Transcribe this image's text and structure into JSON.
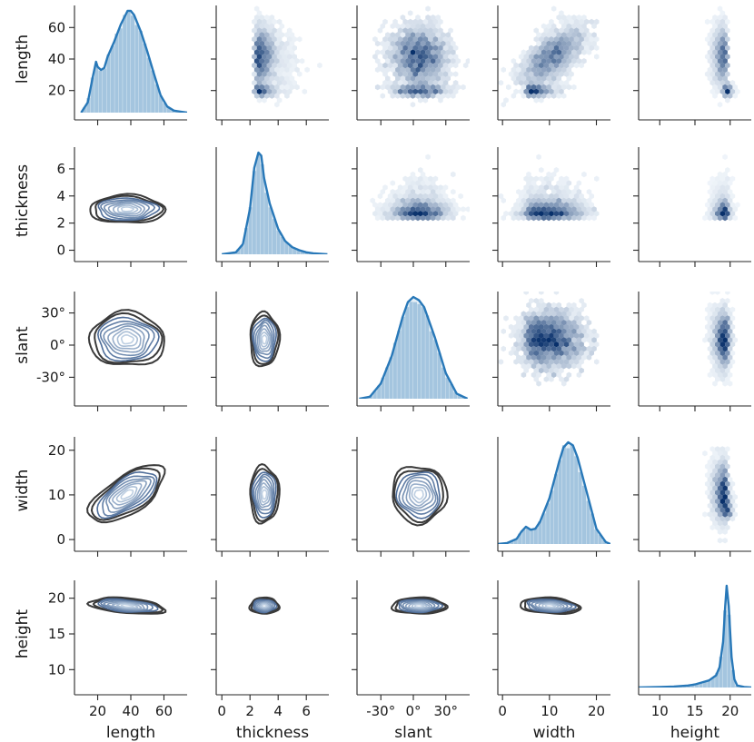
{
  "chart_data": {
    "type": "pairplot",
    "variables": [
      "length",
      "thickness",
      "slant",
      "width",
      "height"
    ],
    "diagonal": "kde-with-histogram",
    "upper": "hexbin-density",
    "lower": "kde-contours",
    "axes": {
      "length": {
        "range": [
          6,
          74
        ],
        "ticks": [
          20,
          40,
          60
        ],
        "tick_labels": [
          "20",
          "40",
          "60"
        ],
        "ylim": [
          6,
          74
        ]
      },
      "thickness": {
        "range": [
          -0.4,
          7.6
        ],
        "ticks": [
          0,
          2,
          4,
          6
        ],
        "tick_labels": [
          "0",
          "2",
          "4",
          "6"
        ],
        "ylim": [
          -0.3,
          7.6
        ]
      },
      "slant": {
        "range": [
          -52,
          52
        ],
        "ticks": [
          -30,
          0,
          30
        ],
        "tick_labels": [
          "-30°",
          "0°",
          "30°"
        ],
        "ylim": [
          -50,
          50
        ]
      },
      "width": {
        "range": [
          -1,
          23
        ],
        "ticks": [
          0,
          10,
          20
        ],
        "tick_labels": [
          "0",
          "10",
          "20"
        ],
        "ylim": [
          -1,
          23
        ]
      },
      "height": {
        "range": [
          7,
          23
        ],
        "ticks": [
          10,
          15,
          20
        ],
        "tick_labels": [
          "10",
          "15",
          "20"
        ],
        "ylim": [
          7.5,
          22.5
        ]
      }
    },
    "marginal_kde": {
      "length": {
        "x": [
          10,
          14,
          17,
          19,
          20,
          22,
          24,
          26,
          30,
          34,
          38,
          40,
          42,
          46,
          50,
          54,
          58,
          62,
          66,
          70,
          74
        ],
        "density": [
          0,
          0.1,
          0.35,
          0.5,
          0.45,
          0.42,
          0.44,
          0.55,
          0.7,
          0.87,
          1.0,
          1.0,
          0.96,
          0.8,
          0.6,
          0.38,
          0.17,
          0.06,
          0.02,
          0.01,
          0
        ]
      },
      "thickness": {
        "x": [
          0,
          1,
          1.5,
          2,
          2.3,
          2.6,
          2.8,
          3,
          3.4,
          4,
          4.5,
          5,
          5.5,
          6,
          6.5,
          7,
          7.5
        ],
        "density": [
          0,
          0.02,
          0.1,
          0.45,
          0.85,
          1.0,
          0.97,
          0.75,
          0.5,
          0.25,
          0.13,
          0.07,
          0.04,
          0.02,
          0.01,
          0.005,
          0
        ]
      },
      "slant": {
        "x": [
          -50,
          -40,
          -30,
          -20,
          -10,
          -5,
          0,
          5,
          10,
          20,
          30,
          40,
          50
        ],
        "density": [
          0,
          0.02,
          0.15,
          0.42,
          0.8,
          0.95,
          1.0,
          0.97,
          0.9,
          0.6,
          0.25,
          0.05,
          0
        ]
      },
      "width": {
        "x": [
          -1,
          1,
          3,
          4,
          5,
          6,
          7,
          8,
          10,
          12,
          13,
          14,
          15,
          16,
          18,
          20,
          22,
          23
        ],
        "density": [
          0,
          0.01,
          0.05,
          0.12,
          0.17,
          0.14,
          0.15,
          0.22,
          0.45,
          0.8,
          0.95,
          1.0,
          0.97,
          0.85,
          0.5,
          0.15,
          0.02,
          0
        ]
      },
      "height": {
        "x": [
          7,
          10,
          12,
          14,
          15,
          16,
          17,
          18,
          18.5,
          19,
          19.3,
          19.5,
          19.8,
          20.2,
          20.6,
          21,
          22,
          23
        ],
        "density": [
          0,
          0.005,
          0.01,
          0.02,
          0.03,
          0.05,
          0.07,
          0.12,
          0.2,
          0.45,
          0.8,
          1.0,
          0.8,
          0.3,
          0.08,
          0.02,
          0.005,
          0
        ]
      }
    },
    "colors": {
      "kde_line": "#2878b8",
      "hist_fill": "#a8c8e0",
      "hex_dark": "#08306b",
      "contour_dark": "#3a3a3a",
      "contour_light": "#c6dbef"
    }
  }
}
